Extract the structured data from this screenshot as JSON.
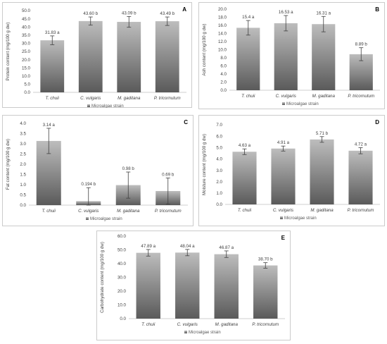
{
  "chart_data": [
    {
      "type": "bar",
      "panel_letter": "A",
      "ylabel": "Protein content (mg/100 g dw)",
      "legend": "Microalgae strain",
      "categories": [
        "T. chuii",
        "C. vulgaris",
        "M. gaditana",
        "P. tricornutum"
      ],
      "values": [
        31.83,
        43.6,
        43.09,
        43.49
      ],
      "errors": [
        2.7,
        2.5,
        3.3,
        2.6
      ],
      "labels": [
        "31.83 a",
        "43.60 b",
        "43.09 b",
        "43.49 b"
      ],
      "ylim": [
        0,
        50
      ],
      "yticks": [
        "0.0",
        "5.0",
        "10.0",
        "15.0",
        "20.0",
        "25.0",
        "30.0",
        "35.0",
        "40.0",
        "45.0",
        "50.0"
      ],
      "grid": false
    },
    {
      "type": "bar",
      "panel_letter": "B",
      "ylabel": "Ash content (mg/100 g dw)",
      "legend": "Microalgae strain",
      "categories": [
        "T. chuii",
        "C. vulgaris",
        "M. gaditana",
        "P. tricornutum"
      ],
      "values": [
        15.4,
        16.53,
        16.31,
        8.89
      ],
      "errors": [
        1.8,
        1.9,
        1.9,
        1.6
      ],
      "labels": [
        "15.4 a",
        "16.53 a",
        "16.31 a",
        "8.89 b"
      ],
      "ylim": [
        0,
        20
      ],
      "yticks": [
        "0.0",
        "2.0",
        "4.0",
        "6.0",
        "8.0",
        "10.0",
        "12.0",
        "14.0",
        "16.0",
        "18.0",
        "20.0"
      ],
      "grid": false
    },
    {
      "type": "bar",
      "panel_letter": "C",
      "ylabel": "Fat content (mg/100 g dw)",
      "legend": "Microalgae strain",
      "categories": [
        "T. chuii",
        "C. vulgaris",
        "M. gaditana",
        "P. tricornutum"
      ],
      "values": [
        3.14,
        0.194,
        0.98,
        0.69
      ],
      "errors": [
        0.62,
        0.66,
        0.64,
        0.64
      ],
      "labels": [
        "3.14 a",
        "0.194 b",
        "0.98 b",
        "0.69 b"
      ],
      "ylim": [
        0,
        4
      ],
      "yticks": [
        "0.0",
        "0.5",
        "1.0",
        "1.5",
        "2.0",
        "2.5",
        "3.0",
        "3.5",
        "4.0"
      ],
      "grid": false
    },
    {
      "type": "bar",
      "panel_letter": "D",
      "ylabel": "Moisture content (mg/100 g dw)",
      "legend": "Microalgae strain",
      "categories": [
        "T. chuii",
        "C. vulgaris",
        "M. gaditana",
        "P. tricornutum"
      ],
      "values": [
        4.63,
        4.91,
        5.71,
        4.72
      ],
      "errors": [
        0.25,
        0.22,
        0.25,
        0.27
      ],
      "labels": [
        "4.63 a",
        "4.91 a",
        "5.71 b",
        "4.72 a"
      ],
      "ylim": [
        0,
        7
      ],
      "yticks": [
        "0.0",
        "1.0",
        "2.0",
        "3.0",
        "4.0",
        "5.0",
        "6.0",
        "7.0"
      ],
      "grid": false
    },
    {
      "type": "bar",
      "panel_letter": "E",
      "ylabel": "Carbohydrate content (mg/100 g dw)",
      "legend": "Microalgae strain",
      "categories": [
        "T. chuii",
        "C. vulgaris",
        "M. gaditana",
        "P. tricornutum"
      ],
      "values": [
        47.89,
        48.04,
        46.87,
        38.7
      ],
      "errors": [
        2.4,
        2.3,
        2.4,
        2.0
      ],
      "labels": [
        "47.89 a",
        "48.04 a",
        "46.87 a",
        "38.70 b"
      ],
      "ylim": [
        0,
        60
      ],
      "yticks": [
        "0.0",
        "10.0",
        "20.0",
        "30.0",
        "40.0",
        "50.0",
        "60.0"
      ],
      "grid": false
    }
  ],
  "colors": {
    "bar_top": "#bdbdbd",
    "bar_bottom": "#5a5a5a",
    "frame": "#bfbfbf"
  }
}
